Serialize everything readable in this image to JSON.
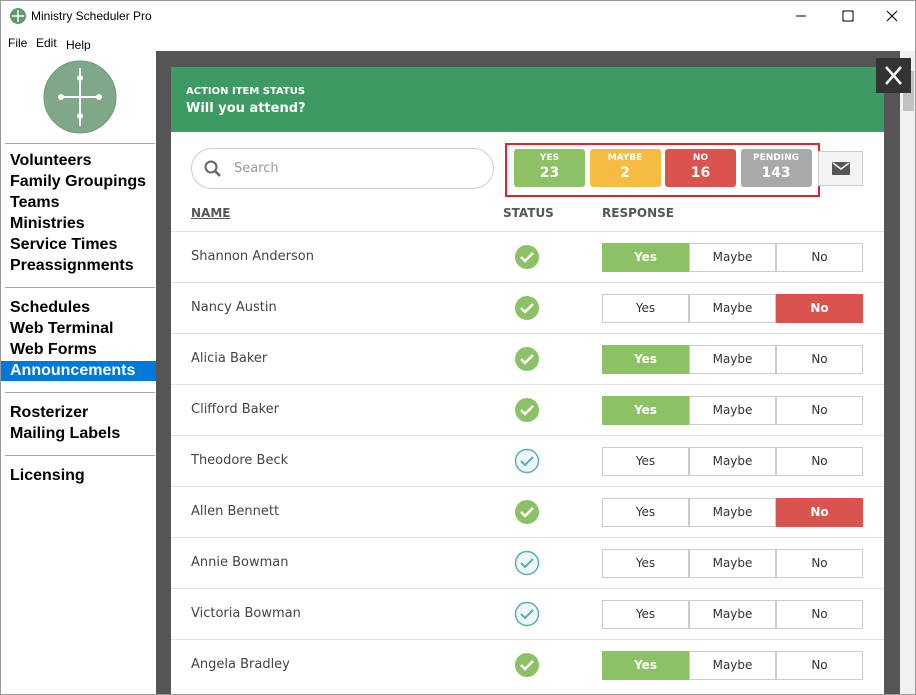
{
  "window": {
    "title": "Ministry Scheduler Pro",
    "menu": [
      "File",
      "Edit",
      "Help"
    ]
  },
  "sidebar": {
    "groups": [
      [
        "Volunteers",
        "Family Groupings",
        "Teams",
        "Ministries",
        "Service Times",
        "Preassignments"
      ],
      [
        "Schedules",
        "Web Terminal",
        "Web Forms",
        "Announcements"
      ],
      [
        "Rosterizer",
        "Mailing Labels"
      ],
      [
        "Licensing"
      ]
    ],
    "selected": [
      1,
      3
    ]
  },
  "modal": {
    "label": "ACTION ITEM STATUS",
    "title": "Will you attend?",
    "search_placeholder": "Search",
    "counts": [
      {
        "label": "YES",
        "value": 23,
        "color": "#8cc265"
      },
      {
        "label": "MAYBE",
        "value": 2,
        "color": "#f6bb42"
      },
      {
        "label": "NO",
        "value": 16,
        "color": "#d9534f"
      },
      {
        "label": "PENDING",
        "value": 143,
        "color": "#a9a9a9"
      }
    ]
  },
  "table": {
    "columns": [
      "NAME",
      "STATUS",
      "RESPONSE"
    ],
    "response_options": [
      "Yes",
      "Maybe",
      "No"
    ],
    "rows": [
      {
        "name": "Shannon Anderson",
        "confirmed": true,
        "selected": 0
      },
      {
        "name": "Nancy Austin",
        "confirmed": true,
        "selected": 2
      },
      {
        "name": "Alicia Baker",
        "confirmed": true,
        "selected": 0
      },
      {
        "name": "Clifford Baker",
        "confirmed": true,
        "selected": 0
      },
      {
        "name": "Theodore Beck",
        "confirmed": false,
        "selected": null
      },
      {
        "name": "Allen Bennett",
        "confirmed": true,
        "selected": 2
      },
      {
        "name": "Annie Bowman",
        "confirmed": false,
        "selected": null
      },
      {
        "name": "Victoria Bowman",
        "confirmed": false,
        "selected": null
      },
      {
        "name": "Angela Bradley",
        "confirmed": true,
        "selected": 0
      }
    ]
  }
}
